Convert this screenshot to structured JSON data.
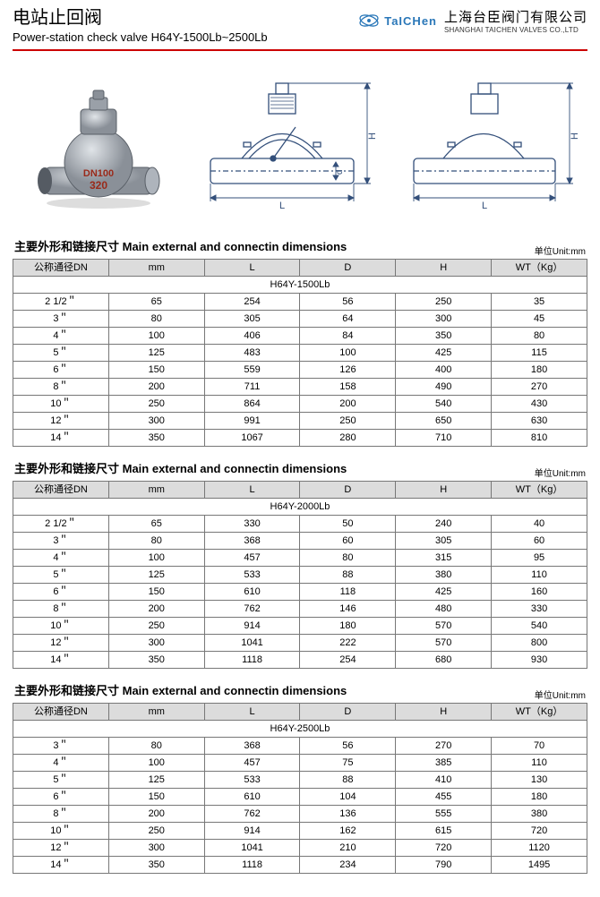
{
  "header": {
    "title_zh": "电站止回阀",
    "title_en": "Power-station check valve  H64Y-1500Lb~2500Lb",
    "logo_text": "TaICHen",
    "company_zh": "上海台臣阀门有限公司",
    "company_en": "SHANGHAI TAICHEN VALVES CO.,LTD"
  },
  "photo_labels": {
    "dn": "DN100",
    "press": "320"
  },
  "diagram_labels": {
    "L": "L",
    "H": "H",
    "d": "d"
  },
  "section": {
    "title": "主要外形和链接尺寸  Main external and connectin dimensions",
    "unit": "单位Unit:mm"
  },
  "columns": [
    "公称通径DN",
    "mm",
    "L",
    "D",
    "H",
    "WT（Kg）"
  ],
  "tables": [
    {
      "model": "H64Y-1500Lb",
      "rows": [
        [
          "2 1/2＂",
          "65",
          "254",
          "56",
          "250",
          "35"
        ],
        [
          "3＂",
          "80",
          "305",
          "64",
          "300",
          "45"
        ],
        [
          "4＂",
          "100",
          "406",
          "84",
          "350",
          "80"
        ],
        [
          "5＂",
          "125",
          "483",
          "100",
          "425",
          "115"
        ],
        [
          "6＂",
          "150",
          "559",
          "126",
          "400",
          "180"
        ],
        [
          "8＂",
          "200",
          "711",
          "158",
          "490",
          "270"
        ],
        [
          "10＂",
          "250",
          "864",
          "200",
          "540",
          "430"
        ],
        [
          "12＂",
          "300",
          "991",
          "250",
          "650",
          "630"
        ],
        [
          "14＂",
          "350",
          "1067",
          "280",
          "710",
          "810"
        ]
      ]
    },
    {
      "model": "H64Y-2000Lb",
      "rows": [
        [
          "2 1/2＂",
          "65",
          "330",
          "50",
          "240",
          "40"
        ],
        [
          "3＂",
          "80",
          "368",
          "60",
          "305",
          "60"
        ],
        [
          "4＂",
          "100",
          "457",
          "80",
          "315",
          "95"
        ],
        [
          "5＂",
          "125",
          "533",
          "88",
          "380",
          "110"
        ],
        [
          "6＂",
          "150",
          "610",
          "118",
          "425",
          "160"
        ],
        [
          "8＂",
          "200",
          "762",
          "146",
          "480",
          "330"
        ],
        [
          "10＂",
          "250",
          "914",
          "180",
          "570",
          "540"
        ],
        [
          "12＂",
          "300",
          "1041",
          "222",
          "570",
          "800"
        ],
        [
          "14＂",
          "350",
          "1118",
          "254",
          "680",
          "930"
        ]
      ]
    },
    {
      "model": "H64Y-2500Lb",
      "rows": [
        [
          "3＂",
          "80",
          "368",
          "56",
          "270",
          "70"
        ],
        [
          "4＂",
          "100",
          "457",
          "75",
          "385",
          "110"
        ],
        [
          "5＂",
          "125",
          "533",
          "88",
          "410",
          "130"
        ],
        [
          "6＂",
          "150",
          "610",
          "104",
          "455",
          "180"
        ],
        [
          "8＂",
          "200",
          "762",
          "136",
          "555",
          "380"
        ],
        [
          "10＂",
          "250",
          "914",
          "162",
          "615",
          "720"
        ],
        [
          "12＂",
          "300",
          "1041",
          "210",
          "720",
          "1120"
        ],
        [
          "14＂",
          "350",
          "1118",
          "234",
          "790",
          "1495"
        ]
      ]
    }
  ],
  "colors": {
    "rule": "#cc0000",
    "header_bg": "#dcdcdc",
    "border": "#777777",
    "logo": "#2a77b8",
    "diagram": "#334f7a"
  }
}
